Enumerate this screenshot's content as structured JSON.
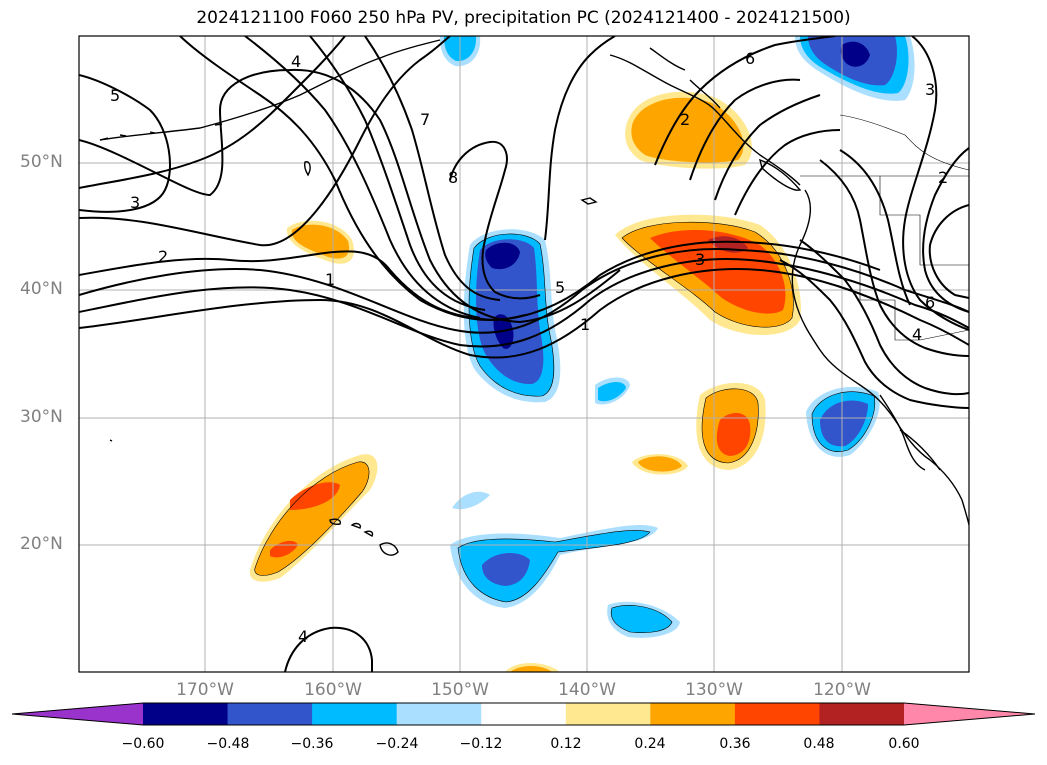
{
  "title": "2024121100 F060 250 hPa PV, precipitation PC (2024121400 - 2024121500)",
  "lat_labels": [
    "50°N",
    "40°N",
    "30°N",
    "20°N"
  ],
  "lon_labels": [
    "170°W",
    "160°W",
    "150°W",
    "140°W",
    "130°W",
    "120°W"
  ],
  "contour_labels": [
    "5",
    "4",
    "3",
    "2",
    "7",
    "8",
    "6",
    "3",
    "2",
    "1",
    "5",
    "3",
    "1",
    "2",
    "6",
    "4",
    "4"
  ],
  "colorbar": {
    "ticks": [
      "−0.60",
      "−0.48",
      "−0.36",
      "−0.24",
      "−0.12",
      "0.12",
      "0.24",
      "0.36",
      "0.48",
      "0.60"
    ],
    "colors": [
      "#9933cc",
      "#000088",
      "#3355cc",
      "#00bbff",
      "#aadfff",
      "#ffffff",
      "#ffe890",
      "#ffa500",
      "#ff4500",
      "#b22222",
      "#ff88aa"
    ]
  }
}
